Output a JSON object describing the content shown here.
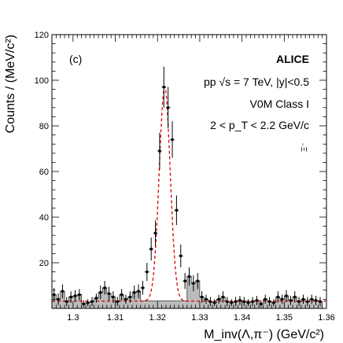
{
  "chart_data": {
    "type": "scatter",
    "panel_label": "(c)",
    "experiment": "ALICE",
    "annotations": {
      "collision": "pp √s = 7 TeV, |y|<0.5",
      "multiplicity_class": "V0M Class I",
      "pt_range": "2 < p_T < 2.2 GeV/c",
      "particle": "Ξ⁻"
    },
    "xlabel": "M_inv(Λ,π⁻) (GeV/c²)",
    "ylabel": "Counts / (MeV/c²)",
    "xlim": [
      1.295,
      1.36
    ],
    "ylim": [
      0,
      120
    ],
    "x_ticks": [
      1.3,
      1.31,
      1.32,
      1.33,
      1.34,
      1.35,
      1.36
    ],
    "x_tick_labels": [
      "1.3",
      "1.31",
      "1.32",
      "1.33",
      "1.34",
      "1.35",
      "1.36"
    ],
    "y_ticks": [
      20,
      40,
      60,
      80,
      100,
      120
    ],
    "y_tick_labels": [
      "20",
      "40",
      "60",
      "80",
      "100",
      "120"
    ],
    "fit_line": {
      "style": "dashed",
      "color": "#dd0000",
      "peak_mean": 1.3217,
      "peak_sigma": 0.0013,
      "peak_amplitude": 94,
      "background_level": 3.2
    },
    "background_fill_color": "#bbbbbb",
    "points": [
      {
        "x": 1.2955,
        "y": 6,
        "err": 3
      },
      {
        "x": 1.2965,
        "y": 4,
        "err": 2.5
      },
      {
        "x": 1.2975,
        "y": 7.5,
        "err": 3
      },
      {
        "x": 1.2985,
        "y": 3,
        "err": 2
      },
      {
        "x": 1.2995,
        "y": 5,
        "err": 2.5
      },
      {
        "x": 1.3005,
        "y": 5.5,
        "err": 2.5
      },
      {
        "x": 1.3015,
        "y": 6,
        "err": 2.5
      },
      {
        "x": 1.3025,
        "y": 2,
        "err": 1.5
      },
      {
        "x": 1.3035,
        "y": 2.5,
        "err": 1.5
      },
      {
        "x": 1.3045,
        "y": 3,
        "err": 2
      },
      {
        "x": 1.3055,
        "y": 4.5,
        "err": 2
      },
      {
        "x": 1.3065,
        "y": 7,
        "err": 3
      },
      {
        "x": 1.3075,
        "y": 9,
        "err": 3
      },
      {
        "x": 1.3085,
        "y": 6.5,
        "err": 3
      },
      {
        "x": 1.3095,
        "y": 5,
        "err": 2.5
      },
      {
        "x": 1.3105,
        "y": 3,
        "err": 2
      },
      {
        "x": 1.3115,
        "y": 6,
        "err": 2.5
      },
      {
        "x": 1.3125,
        "y": 4,
        "err": 2
      },
      {
        "x": 1.3135,
        "y": 5,
        "err": 2.5
      },
      {
        "x": 1.3145,
        "y": 7,
        "err": 3
      },
      {
        "x": 1.3155,
        "y": 7.5,
        "err": 3
      },
      {
        "x": 1.3165,
        "y": 9,
        "err": 3
      },
      {
        "x": 1.3175,
        "y": 16,
        "err": 4
      },
      {
        "x": 1.3185,
        "y": 26,
        "err": 5
      },
      {
        "x": 1.3195,
        "y": 33,
        "err": 5.5
      },
      {
        "x": 1.3205,
        "y": 69,
        "err": 8
      },
      {
        "x": 1.3215,
        "y": 97,
        "err": 9
      },
      {
        "x": 1.3225,
        "y": 88,
        "err": 9
      },
      {
        "x": 1.3235,
        "y": 74,
        "err": 8
      },
      {
        "x": 1.3245,
        "y": 43,
        "err": 6.5
      },
      {
        "x": 1.3255,
        "y": 23,
        "err": 5
      },
      {
        "x": 1.3265,
        "y": 12,
        "err": 3.5
      },
      {
        "x": 1.3275,
        "y": 14,
        "err": 4
      },
      {
        "x": 1.3285,
        "y": 11,
        "err": 3.5
      },
      {
        "x": 1.3295,
        "y": 12,
        "err": 3.5
      },
      {
        "x": 1.3305,
        "y": 5,
        "err": 2.5
      },
      {
        "x": 1.3315,
        "y": 4,
        "err": 2
      },
      {
        "x": 1.3325,
        "y": 3,
        "err": 2
      },
      {
        "x": 1.3335,
        "y": 2.5,
        "err": 1.5
      },
      {
        "x": 1.3345,
        "y": 4,
        "err": 2
      },
      {
        "x": 1.3355,
        "y": 5,
        "err": 2.5
      },
      {
        "x": 1.3365,
        "y": 3,
        "err": 2
      },
      {
        "x": 1.3375,
        "y": 2.5,
        "err": 1.5
      },
      {
        "x": 1.3385,
        "y": 3,
        "err": 2
      },
      {
        "x": 1.3395,
        "y": 3.5,
        "err": 2
      },
      {
        "x": 1.3405,
        "y": 3,
        "err": 2
      },
      {
        "x": 1.3415,
        "y": 2.5,
        "err": 1.5
      },
      {
        "x": 1.3425,
        "y": 3,
        "err": 2
      },
      {
        "x": 1.3435,
        "y": 3.5,
        "err": 2
      },
      {
        "x": 1.3445,
        "y": 2,
        "err": 1.5
      },
      {
        "x": 1.3455,
        "y": 4,
        "err": 2
      },
      {
        "x": 1.3465,
        "y": 3,
        "err": 2
      },
      {
        "x": 1.3475,
        "y": 2.5,
        "err": 1.5
      },
      {
        "x": 1.3485,
        "y": 5,
        "err": 2.5
      },
      {
        "x": 1.3495,
        "y": 4,
        "err": 2
      },
      {
        "x": 1.3505,
        "y": 5.5,
        "err": 2.5
      },
      {
        "x": 1.3515,
        "y": 3.5,
        "err": 2
      },
      {
        "x": 1.3525,
        "y": 5,
        "err": 2.5
      },
      {
        "x": 1.3535,
        "y": 3,
        "err": 2
      },
      {
        "x": 1.3545,
        "y": 4,
        "err": 2
      },
      {
        "x": 1.3555,
        "y": 3,
        "err": 2
      },
      {
        "x": 1.3565,
        "y": 4,
        "err": 2
      },
      {
        "x": 1.3575,
        "y": 3.5,
        "err": 2
      },
      {
        "x": 1.3585,
        "y": 3,
        "err": 2
      }
    ]
  }
}
